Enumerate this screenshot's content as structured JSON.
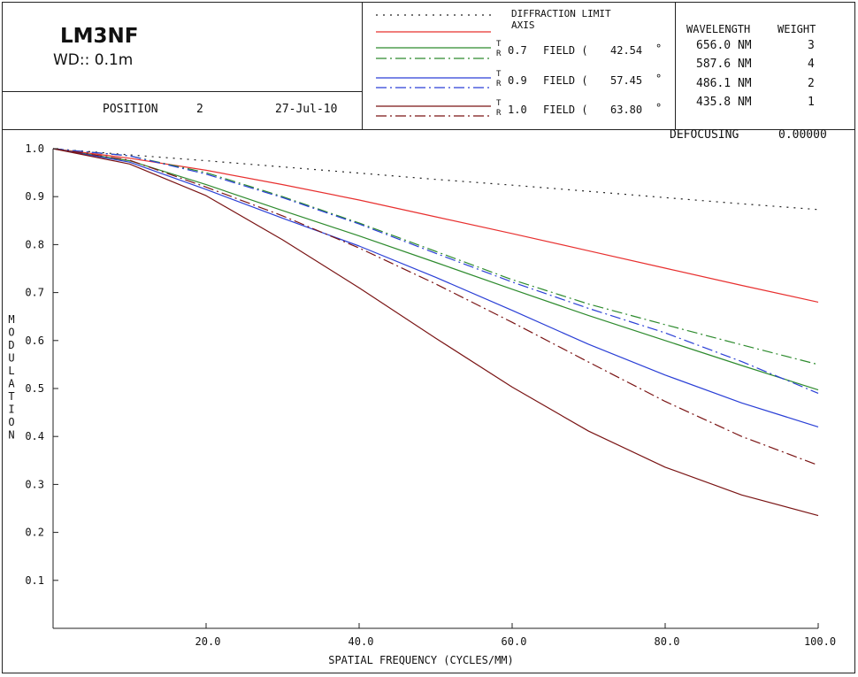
{
  "header": {
    "title": "LM3NF",
    "subtitle": "WD:: 0.1m",
    "position_label": "POSITION",
    "position_value": "2",
    "date": "27-Jul-10"
  },
  "legend": {
    "diffraction_limit": "DIFFRACTION LIMIT",
    "axis": "AXIS",
    "tangential_mark": "T",
    "radial_mark": "R",
    "field_label": "FIELD (",
    "degree": "°",
    "fields": [
      {
        "relative": "0.7",
        "angle": "42.54",
        "color": "#2e8b2e"
      },
      {
        "relative": "0.9",
        "angle": "57.45",
        "color": "#2a3fd6"
      },
      {
        "relative": "1.0",
        "angle": "63.80",
        "color": "#7a1414"
      }
    ],
    "diffraction_color": "#222222",
    "axis_color": "#e8302f"
  },
  "wavelengths": {
    "header_wavelength": "WAVELENGTH",
    "header_weight": "WEIGHT",
    "rows": [
      {
        "wavelength": "656.0 NM",
        "weight": "3"
      },
      {
        "wavelength": "587.6 NM",
        "weight": "4"
      },
      {
        "wavelength": "486.1 NM",
        "weight": "2"
      },
      {
        "wavelength": "435.8 NM",
        "weight": "1"
      }
    ]
  },
  "defocusing": {
    "label": "DEFOCUSING",
    "value": "0.00000"
  },
  "chart_data": {
    "type": "line",
    "xlabel": "SPATIAL FREQUENCY (CYCLES/MM)",
    "ylabel": "MODULATION",
    "xlim": [
      0,
      100
    ],
    "ylim": [
      0,
      1.0
    ],
    "x_ticks": [
      "20.0",
      "40.0",
      "60.0",
      "80.0",
      "100.0"
    ],
    "y_ticks": [
      "0.1",
      "0.2",
      "0.3",
      "0.4",
      "0.5",
      "0.6",
      "0.7",
      "0.8",
      "0.9",
      "1.0"
    ],
    "grid": false,
    "x": [
      0,
      10,
      20,
      30,
      40,
      50,
      60,
      70,
      80,
      90,
      100
    ],
    "series": [
      {
        "name": "DIFFRACTION LIMIT",
        "color": "#222222",
        "style": "dotted",
        "values": [
          1.0,
          0.987,
          0.975,
          0.962,
          0.949,
          0.936,
          0.924,
          0.911,
          0.898,
          0.885,
          0.873
        ]
      },
      {
        "name": "AXIS",
        "color": "#e8302f",
        "style": "solid",
        "values": [
          1.0,
          0.98,
          0.955,
          0.925,
          0.893,
          0.858,
          0.823,
          0.787,
          0.751,
          0.715,
          0.68
        ]
      },
      {
        "name": "0.7 FIELD T",
        "color": "#2e8b2e",
        "style": "solid",
        "values": [
          1.0,
          0.975,
          0.925,
          0.871,
          0.818,
          0.763,
          0.707,
          0.652,
          0.6,
          0.548,
          0.497
        ]
      },
      {
        "name": "0.7 FIELD R",
        "color": "#2e8b2e",
        "style": "dashdot",
        "values": [
          1.0,
          0.985,
          0.95,
          0.9,
          0.845,
          0.786,
          0.727,
          0.676,
          0.633,
          0.591,
          0.55
        ]
      },
      {
        "name": "0.9 FIELD T",
        "color": "#2a3fd6",
        "style": "solid",
        "values": [
          1.0,
          0.972,
          0.915,
          0.855,
          0.797,
          0.732,
          0.663,
          0.592,
          0.528,
          0.47,
          0.42
        ]
      },
      {
        "name": "0.9 FIELD R",
        "color": "#2a3fd6",
        "style": "dashdot",
        "values": [
          1.0,
          0.985,
          0.947,
          0.898,
          0.843,
          0.782,
          0.722,
          0.667,
          0.616,
          0.556,
          0.49
        ]
      },
      {
        "name": "1.0 FIELD T",
        "color": "#7a1414",
        "style": "solid",
        "values": [
          1.0,
          0.968,
          0.902,
          0.81,
          0.71,
          0.605,
          0.503,
          0.411,
          0.336,
          0.278,
          0.235
        ]
      },
      {
        "name": "1.0 FIELD R",
        "color": "#7a1414",
        "style": "dashdot",
        "values": [
          1.0,
          0.976,
          0.92,
          0.86,
          0.793,
          0.718,
          0.638,
          0.555,
          0.473,
          0.4,
          0.34
        ]
      }
    ]
  }
}
